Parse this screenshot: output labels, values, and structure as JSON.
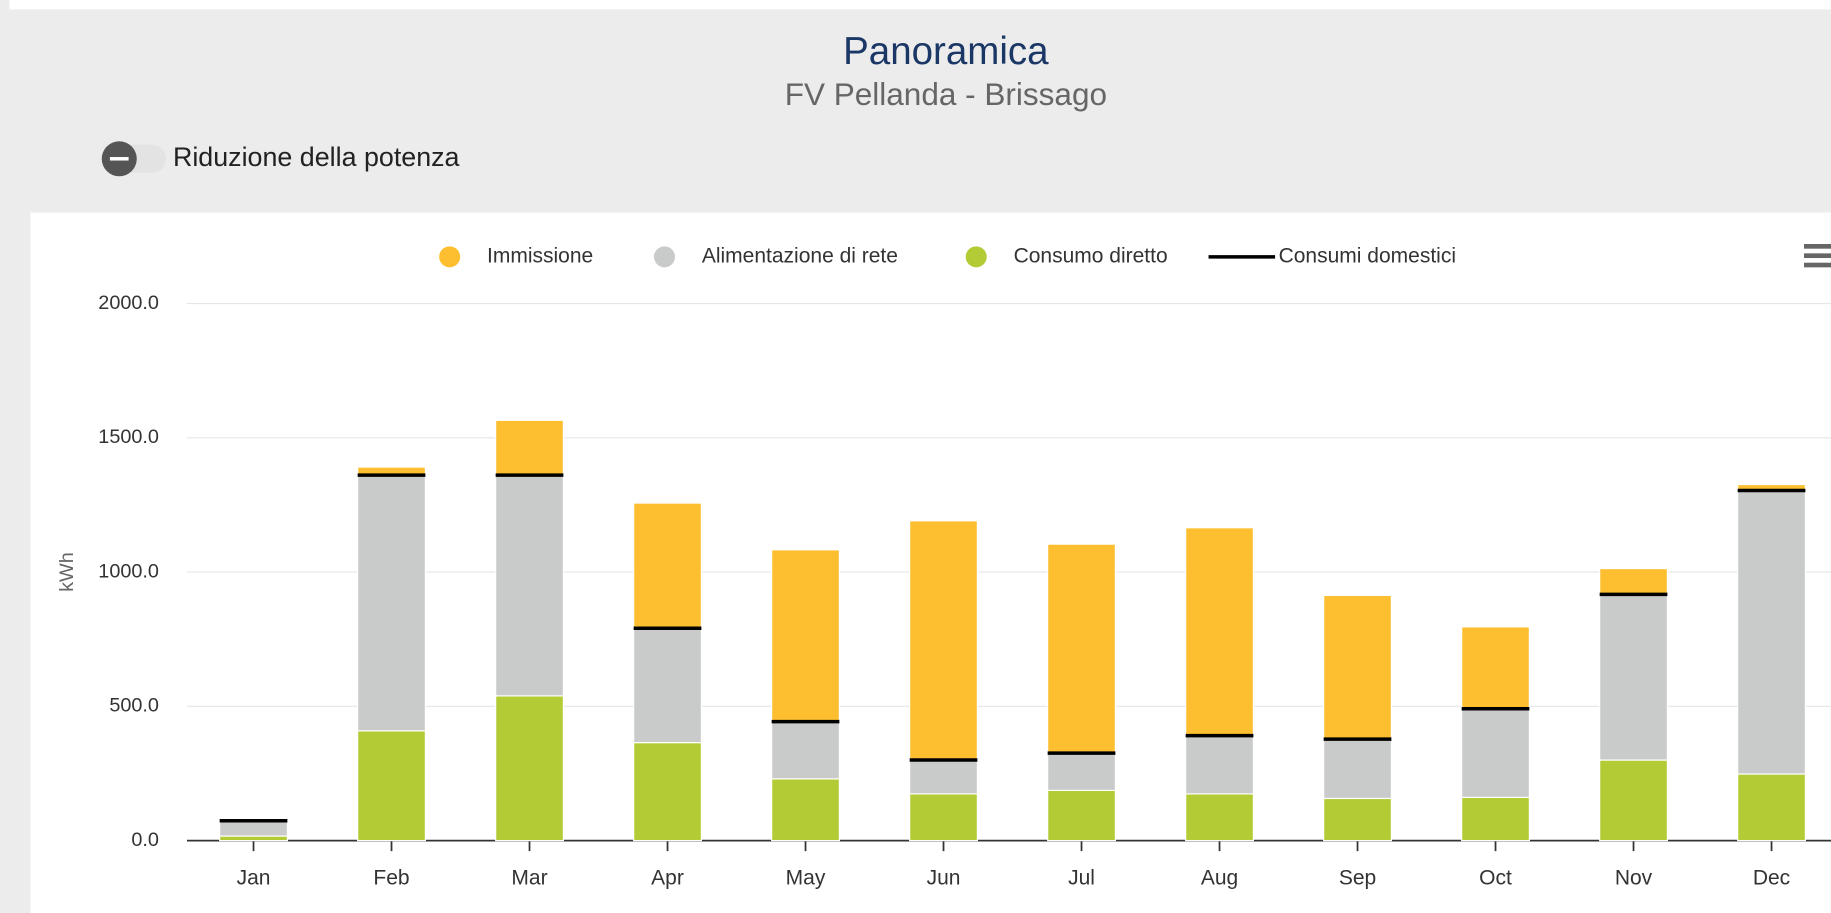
{
  "chart_data": {
    "type": "bar",
    "title": "Panoramica",
    "subtitle": "FV Pellanda - Brissago",
    "toggle_label": "Riduzione della potenza",
    "y_axis_label": "kWh",
    "categories": [
      "Jan",
      "Feb",
      "Mar",
      "Apr",
      "May",
      "Jun",
      "Jul",
      "Aug",
      "Sep",
      "Oct",
      "Nov",
      "Dec"
    ],
    "series": [
      {
        "name": "Immissione",
        "type": "column",
        "color": "#fdbf30",
        "values": [
          0,
          30,
          204,
          466,
          640,
          891,
          778,
          774,
          535,
          305,
          96,
          22
        ]
      },
      {
        "name": "Alimentazione di rete",
        "type": "column",
        "color": "#c8cbca",
        "values": [
          57,
          952,
          822,
          426,
          213,
          126,
          139,
          217,
          221,
          330,
          617,
          1056
        ]
      },
      {
        "name": "Consumo diretto",
        "type": "column",
        "color": "#b3cc35",
        "values": [
          17,
          409,
          539,
          365,
          230,
          174,
          187,
          174,
          157,
          161,
          300,
          248
        ]
      },
      {
        "name": "Consumi domestici",
        "type": "line",
        "color": "#000000",
        "values": [
          74,
          1361,
          1361,
          791,
          443,
          300,
          326,
          391,
          378,
          491,
          917,
          1304
        ]
      }
    ],
    "ylim": [
      0,
      2000
    ],
    "yticks": [
      {
        "value": 0,
        "label": "0.0"
      },
      {
        "value": 500,
        "label": "500.0"
      },
      {
        "value": 1000,
        "label": "1000.0"
      },
      {
        "value": 1500,
        "label": "1500.0"
      },
      {
        "value": 2000,
        "label": "2000.0"
      }
    ],
    "grid": true,
    "legend": "top"
  }
}
